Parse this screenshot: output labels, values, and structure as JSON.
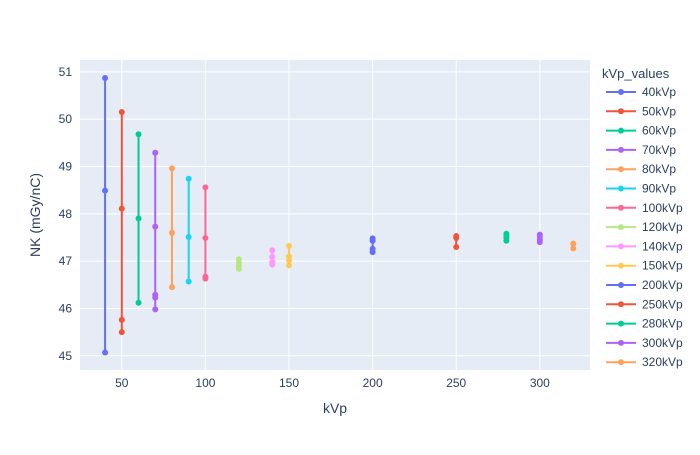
{
  "chart_data": {
    "type": "line",
    "xlabel": "kVp",
    "ylabel": "NK (mGy/nC)",
    "xlim": [
      25,
      330
    ],
    "ylim": [
      44.7,
      51.25
    ],
    "x_ticks": [
      50,
      100,
      150,
      200,
      250,
      300
    ],
    "y_ticks": [
      45,
      46,
      47,
      48,
      49,
      50,
      51
    ],
    "grid": true,
    "legend_title": "kVp_values",
    "legend_position": "right",
    "series": [
      {
        "name": "40kVp",
        "color": "#636efa",
        "x": [
          40,
          40,
          40
        ],
        "y": [
          50.87,
          48.49,
          45.07
        ]
      },
      {
        "name": "50kVp",
        "color": "#ef553b",
        "x": [
          50,
          50,
          50,
          50
        ],
        "y": [
          50.15,
          48.11,
          45.76,
          45.5
        ]
      },
      {
        "name": "60kVp",
        "color": "#00cc96",
        "x": [
          60,
          60,
          60
        ],
        "y": [
          49.68,
          47.9,
          46.12
        ]
      },
      {
        "name": "70kVp",
        "color": "#ab63fa",
        "x": [
          70,
          70,
          70,
          70,
          70
        ],
        "y": [
          49.29,
          47.73,
          46.29,
          46.23,
          45.98
        ]
      },
      {
        "name": "80kVp",
        "color": "#ffa15a",
        "x": [
          80,
          80,
          80
        ],
        "y": [
          48.96,
          47.6,
          46.45
        ]
      },
      {
        "name": "90kVp",
        "color": "#19d3f3",
        "x": [
          90,
          90,
          90
        ],
        "y": [
          48.74,
          47.51,
          46.57
        ]
      },
      {
        "name": "100kVp",
        "color": "#ff6692",
        "x": [
          100,
          100,
          100,
          100
        ],
        "y": [
          48.56,
          47.49,
          46.67,
          46.63
        ]
      },
      {
        "name": "120kVp",
        "color": "#b6e880",
        "x": [
          120,
          120,
          120,
          120
        ],
        "y": [
          47.04,
          46.96,
          46.9,
          46.84
        ]
      },
      {
        "name": "140kVp",
        "color": "#ff97ff",
        "x": [
          140,
          140,
          140,
          140
        ],
        "y": [
          47.23,
          47.09,
          46.98,
          46.93
        ]
      },
      {
        "name": "150kVp",
        "color": "#fecb52",
        "x": [
          150,
          150,
          150,
          150
        ],
        "y": [
          47.32,
          47.1,
          47.02,
          46.91
        ]
      },
      {
        "name": "200kVp",
        "color": "#636efa",
        "x": [
          200,
          200,
          200,
          200
        ],
        "y": [
          47.48,
          47.43,
          47.26,
          47.19
        ]
      },
      {
        "name": "250kVp",
        "color": "#ef553b",
        "x": [
          250,
          250,
          250
        ],
        "y": [
          47.53,
          47.49,
          47.3
        ]
      },
      {
        "name": "280kVp",
        "color": "#00cc96",
        "x": [
          280,
          280,
          280,
          280
        ],
        "y": [
          47.58,
          47.53,
          47.49,
          47.43
        ]
      },
      {
        "name": "300kVp",
        "color": "#ab63fa",
        "x": [
          300,
          300,
          300,
          300
        ],
        "y": [
          47.56,
          47.51,
          47.45,
          47.4
        ]
      },
      {
        "name": "320kVp",
        "color": "#ffa15a",
        "x": [
          320,
          320
        ],
        "y": [
          47.37,
          47.27
        ]
      }
    ]
  }
}
